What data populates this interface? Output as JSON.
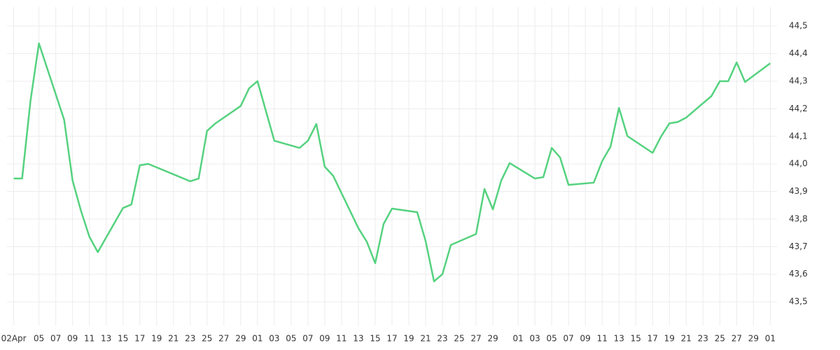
{
  "chart_data": {
    "type": "line",
    "x": [
      0,
      1,
      2,
      3,
      6,
      7,
      8,
      9,
      10,
      13,
      14,
      15,
      16,
      21,
      22,
      23,
      24,
      27,
      28,
      29,
      31,
      34,
      35,
      36,
      37,
      38,
      41,
      42,
      43,
      44,
      45,
      48,
      49,
      50,
      51,
      52,
      55,
      56,
      57,
      58,
      59,
      62,
      63,
      64,
      65,
      66,
      69,
      70,
      71,
      72,
      73,
      76,
      77,
      78,
      79,
      80,
      83,
      84,
      85,
      86,
      87,
      90
    ],
    "series": [
      {
        "color": "#55d27f",
        "values": [
          43.947,
          43.947,
          44.23,
          44.437,
          44.16,
          43.94,
          43.83,
          43.736,
          43.68,
          43.84,
          43.853,
          43.995,
          44.0,
          43.937,
          43.947,
          44.12,
          44.147,
          44.21,
          44.274,
          44.3,
          44.084,
          44.058,
          44.084,
          44.145,
          43.99,
          43.957,
          43.767,
          43.718,
          43.64,
          43.782,
          43.838,
          43.825,
          43.72,
          43.574,
          43.6,
          43.706,
          43.746,
          43.909,
          43.835,
          43.94,
          44.003,
          43.947,
          43.952,
          44.058,
          44.023,
          43.924,
          43.932,
          44.01,
          44.063,
          44.203,
          44.101,
          44.04,
          44.099,
          44.147,
          44.152,
          44.168,
          44.246,
          44.3,
          44.3,
          44.368,
          44.297,
          44.365
        ]
      }
    ],
    "xlim": [
      -0.8,
      90.8
    ],
    "xticks": [
      {
        "value": 0,
        "label": "02Apr"
      },
      {
        "value": 3,
        "label": "05"
      },
      {
        "value": 5,
        "label": "07"
      },
      {
        "value": 7,
        "label": "09"
      },
      {
        "value": 9,
        "label": "11"
      },
      {
        "value": 11,
        "label": "13"
      },
      {
        "value": 13,
        "label": "15"
      },
      {
        "value": 15,
        "label": "17"
      },
      {
        "value": 17,
        "label": "19"
      },
      {
        "value": 19,
        "label": "21"
      },
      {
        "value": 21,
        "label": "23"
      },
      {
        "value": 23,
        "label": "25"
      },
      {
        "value": 25,
        "label": "27"
      },
      {
        "value": 27,
        "label": "29"
      },
      {
        "value": 29,
        "label": "01"
      },
      {
        "value": 31,
        "label": "03"
      },
      {
        "value": 33,
        "label": "05"
      },
      {
        "value": 35,
        "label": "07"
      },
      {
        "value": 37,
        "label": "09"
      },
      {
        "value": 39,
        "label": "11"
      },
      {
        "value": 41,
        "label": "13"
      },
      {
        "value": 43,
        "label": "15"
      },
      {
        "value": 45,
        "label": "17"
      },
      {
        "value": 47,
        "label": "19"
      },
      {
        "value": 49,
        "label": "21"
      },
      {
        "value": 51,
        "label": "23"
      },
      {
        "value": 53,
        "label": "25"
      },
      {
        "value": 55,
        "label": "27"
      },
      {
        "value": 57,
        "label": "29"
      },
      {
        "value": 60,
        "label": "01"
      },
      {
        "value": 62,
        "label": "03"
      },
      {
        "value": 64,
        "label": "05"
      },
      {
        "value": 66,
        "label": "07"
      },
      {
        "value": 68,
        "label": "09"
      },
      {
        "value": 70,
        "label": "11"
      },
      {
        "value": 72,
        "label": "13"
      },
      {
        "value": 74,
        "label": "15"
      },
      {
        "value": 76,
        "label": "17"
      },
      {
        "value": 78,
        "label": "19"
      },
      {
        "value": 80,
        "label": "21"
      },
      {
        "value": 82,
        "label": "23"
      },
      {
        "value": 84,
        "label": "25"
      },
      {
        "value": 86,
        "label": "27"
      },
      {
        "value": 88,
        "label": "29"
      },
      {
        "value": 90,
        "label": "01"
      }
    ],
    "ylim": [
      43.414,
      44.569
    ],
    "yticks": [
      {
        "value": 43.5,
        "label": "43,5"
      },
      {
        "value": 43.6,
        "label": "43,6"
      },
      {
        "value": 43.7,
        "label": "43,7"
      },
      {
        "value": 43.8,
        "label": "43,8"
      },
      {
        "value": 43.9,
        "label": "43,9"
      },
      {
        "value": 44.0,
        "label": "44,0"
      },
      {
        "value": 44.1,
        "label": "44,1"
      },
      {
        "value": 44.2,
        "label": "44,2"
      },
      {
        "value": 44.3,
        "label": "44,3"
      },
      {
        "value": 44.4,
        "label": "44,4"
      },
      {
        "value": 44.5,
        "label": "44,5"
      }
    ],
    "grid": true
  }
}
